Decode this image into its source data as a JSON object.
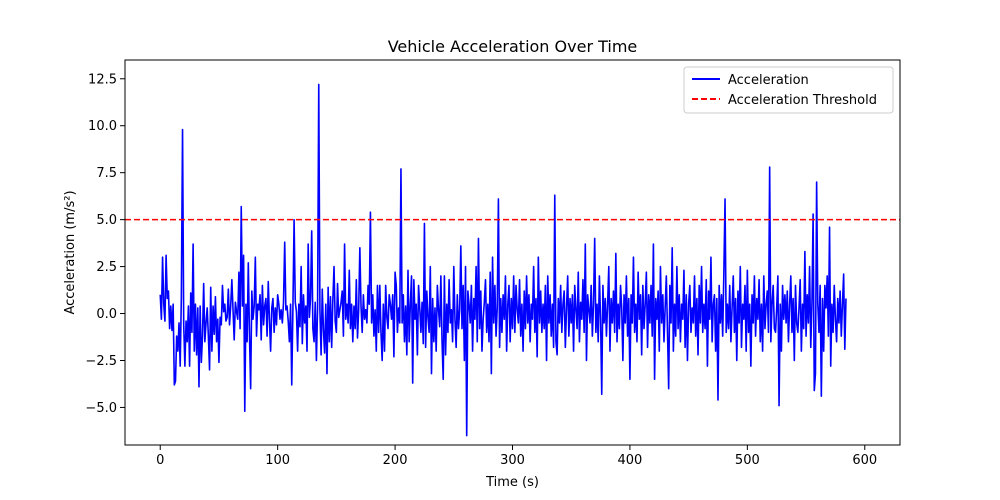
{
  "chart_data": {
    "type": "line",
    "title": "Vehicle Acceleration Over Time",
    "xlabel": "Time (s)",
    "ylabel": "Acceleration (m/s²)",
    "xlim": [
      -30,
      630
    ],
    "ylim": [
      -7,
      13.5
    ],
    "xticks": [
      0,
      100,
      200,
      300,
      400,
      500,
      600
    ],
    "xtick_labels": [
      "0",
      "100",
      "200",
      "300",
      "400",
      "500",
      "600"
    ],
    "yticks": [
      -5.0,
      -2.5,
      0.0,
      2.5,
      5.0,
      7.5,
      10.0,
      12.5
    ],
    "ytick_labels": [
      "−5.0",
      "−2.5",
      "0.0",
      "2.5",
      "5.0",
      "7.5",
      "10.0",
      "12.5"
    ],
    "grid": false,
    "legend_position": "top-right",
    "series": [
      {
        "name": "Acceleration",
        "color": "#0000ff",
        "x_start": 0,
        "x_step": 1,
        "values": [
          1.0,
          -0.3,
          3.0,
          0.5,
          -0.4,
          3.1,
          0.8,
          1.2,
          -0.8,
          0.4,
          -0.9,
          0.5,
          -3.8,
          -3.6,
          -1.2,
          -2.0,
          -0.5,
          -2.8,
          0.9,
          9.8,
          -0.6,
          -2.8,
          -0.4,
          -1.5,
          0.4,
          -2.8,
          1.1,
          -1.0,
          3.7,
          -2.0,
          0.5,
          -2.2,
          0.3,
          -3.9,
          0.4,
          -2.6,
          -1.2,
          1.6,
          -1.5,
          -0.5,
          0.3,
          -1.2,
          -3.0,
          1.4,
          -2.0,
          0.4,
          -1.1,
          0.9,
          -1.5,
          -0.3,
          -2.6,
          -0.2,
          -0.6,
          1.5,
          0.1,
          0.5,
          -0.4,
          -0.2,
          1.3,
          -0.6,
          0.4,
          1.8,
          0.2,
          -1.4,
          0.6,
          0.1,
          -0.3,
          2.2,
          -0.8,
          5.7,
          0.4,
          3.1,
          -5.2,
          0.5,
          -1.5,
          2.7,
          -1.1,
          -4.0,
          1.2,
          -0.3,
          0.4,
          3.0,
          -1.2,
          0.5,
          0.2,
          1.0,
          -1.4,
          1.5,
          -0.6,
          0.4,
          0.8,
          -1.2,
          1.7,
          -0.3,
          -2.0,
          0.3,
          0.8,
          -1.0,
          0.3,
          -0.6,
          1.0,
          0.5,
          -0.3,
          0.2,
          -0.5,
          0.6,
          3.8,
          0.2,
          0.4,
          -0.4,
          -1.5,
          0.5,
          -3.8,
          0.3,
          5.0,
          0.6,
          0.1,
          -2.0,
          0.5,
          -0.7,
          2.5,
          -1.6,
          1.0,
          -0.5,
          0.4,
          -2.0,
          3.7,
          -0.2,
          0.8,
          4.4,
          -0.8,
          -1.5,
          0.6,
          -2.5,
          0.3,
          12.2,
          0.2,
          -2.2,
          1.3,
          -0.9,
          -2.1,
          0.5,
          -3.2,
          1.4,
          -1.5,
          0.9,
          -1.8,
          0.7,
          2.5,
          -0.4,
          -1.0,
          1.6,
          -0.2,
          0.2,
          0.6,
          1.2,
          -1.2,
          3.7,
          -0.3,
          0.5,
          -0.5,
          2.3,
          -0.8,
          0.5,
          -1.5,
          0.4,
          -0.8,
          1.8,
          -1.3,
          0.2,
          3.5,
          0.4,
          -1.0,
          1.0,
          -0.3,
          0.2,
          -0.5,
          1.5,
          0.5,
          5.4,
          -0.5,
          1.0,
          -1.2,
          0.2,
          -2.0,
          1.5,
          -1.0,
          1.5,
          -1.0,
          -2.5,
          0.5,
          -2.0,
          1.5,
          -0.2,
          -0.8,
          1.0,
          0.5,
          -0.3,
          1.0,
          -2.3,
          2.2,
          1.5,
          -1.0,
          0.3,
          -0.5,
          7.7,
          -0.5,
          1.0,
          -1.5,
          0.4,
          -2.2,
          2.3,
          -1.5,
          0.5,
          2.0,
          -3.7,
          1.8,
          -0.3,
          0.5,
          -2.2,
          1.5,
          0.3,
          -1.0,
          0.6,
          -1.6,
          4.8,
          -1.8,
          1.2,
          -0.2,
          -1.0,
          2.5,
          -3.2,
          0.8,
          -1.5,
          0.3,
          -2.0,
          1.5,
          0.2,
          -0.7,
          2.0,
          -1.5,
          -3.5,
          2.0,
          -2.2,
          0.5,
          -1.0,
          1.8,
          -0.5,
          0.2,
          -1.5,
          2.5,
          -0.3,
          -1.8,
          1.0,
          -0.8,
          0.2,
          3.6,
          -0.8,
          1.5,
          -2.5,
          2.5,
          -6.5,
          1.2,
          0.5,
          -0.5,
          1.5,
          -2.0,
          0.8,
          -0.3,
          2.5,
          -1.5,
          4.0,
          -0.8,
          1.2,
          -2.0,
          -0.3,
          0.6,
          1.8,
          -1.0,
          0.5,
          -1.5,
          2.2,
          -3.2,
          3.0,
          -0.5,
          1.5,
          -1.2,
          0.3,
          6.1,
          -1.8,
          0.8,
          -1.0,
          1.0,
          -0.3,
          2.0,
          -2.0,
          0.5,
          1.5,
          -1.5,
          0.8,
          -0.8,
          2.0,
          -1.0,
          1.5,
          0.2,
          -0.5,
          1.8,
          -1.2,
          0.5,
          -2.0,
          1.2,
          -0.8,
          2.0,
          -0.5,
          1.0,
          -1.5,
          0.5,
          -0.3,
          2.5,
          -1.0,
          0.8,
          -2.3,
          3.0,
          -0.5,
          1.2,
          -1.0,
          0.5,
          -0.8,
          1.5,
          -2.5,
          2.0,
          -0.5,
          1.0,
          -1.2,
          0.5,
          -1.8,
          6.3,
          -1.5,
          -2.2,
          0.8,
          -0.5,
          1.5,
          -1.0,
          0.5,
          1.2,
          -1.8,
          0.3,
          2.0,
          -1.2,
          0.8,
          -0.5,
          1.0,
          -2.0,
          1.5,
          0.2,
          -0.8,
          2.2,
          -1.5,
          0.6,
          -0.3,
          1.8,
          -1.0,
          3.7,
          -2.5,
          1.0,
          0.2,
          -0.5,
          1.5,
          -1.2,
          0.5,
          4.0,
          -1.0,
          0.5,
          -1.5,
          2.0,
          -0.3,
          -4.3,
          1.5,
          -0.5,
          0.8,
          -1.2,
          0.5,
          2.5,
          -2.0,
          0.8,
          -0.5,
          1.2,
          -1.0,
          3.2,
          -1.5,
          0.5,
          -0.8,
          1.5,
          0.3,
          -2.5,
          1.0,
          -0.5,
          2.0,
          -1.2,
          0.8,
          -3.5,
          1.0,
          -0.5,
          3.0,
          -1.0,
          0.5,
          -1.5,
          2.2,
          -0.3,
          1.0,
          -2.2,
          1.5,
          -0.8,
          0.5,
          2.2,
          -1.8,
          1.0,
          -0.5,
          1.5,
          -1.2,
          3.7,
          -3.5,
          0.8,
          -0.3,
          1.2,
          -2.0,
          2.5,
          -0.5,
          1.0,
          -1.5,
          0.3,
          2.0,
          -1.0,
          -4.0,
          1.5,
          -0.5,
          3.5,
          -2.0,
          0.5,
          -1.2,
          2.5,
          -0.8,
          1.0,
          -1.5,
          0.5,
          -0.3,
          2.3,
          -1.8,
          1.0,
          -2.5,
          0.5,
          1.5,
          -1.0,
          0.3,
          -0.5,
          2.0,
          -1.2,
          0.8,
          -2.2,
          1.5,
          -0.5,
          2.5,
          -1.0,
          0.5,
          -0.8,
          1.8,
          -2.8,
          1.2,
          -0.3,
          3.0,
          -1.5,
          0.5,
          1.0,
          -2.0,
          0.8,
          -4.6,
          1.5,
          -0.5,
          1.0,
          -1.2,
          2.2,
          6.1,
          -1.0,
          0.5,
          -0.8,
          1.5,
          -1.5,
          0.3,
          2.0,
          -1.0,
          0.8,
          -2.5,
          1.2,
          -0.5,
          2.5,
          -1.8,
          0.5,
          -0.3,
          1.5,
          -2.0,
          2.3,
          -1.0,
          0.5,
          -2.8,
          1.0,
          -0.5,
          2.0,
          -1.2,
          0.8,
          -0.3,
          1.8,
          -1.5,
          0.5,
          -2.0,
          2.0,
          -0.8,
          0.5,
          1.2,
          -1.0,
          7.8,
          -1.5,
          0.5,
          1.5,
          -0.8,
          -1.0,
          0.3,
          2.0,
          -4.9,
          0.5,
          -2.0,
          1.5,
          -0.3,
          1.0,
          -0.5,
          1.2,
          -1.5,
          0.5,
          2.0,
          -1.0,
          0.8,
          -2.5,
          1.5,
          -0.5,
          -1.0,
          0.3,
          1.8,
          -2.0,
          0.5,
          -0.8,
          3.3,
          -1.2,
          1.0,
          -0.5,
          2.5,
          -1.8,
          0.5,
          5.3,
          -4.1,
          -3.2,
          7.0,
          0.5,
          -1.0,
          1.5,
          -4.4,
          0.8,
          -2.0,
          1.5,
          0.3,
          2.0,
          -1.2,
          4.6,
          -2.8,
          0.5,
          -1.0,
          1.5,
          -0.3,
          -1.5,
          0.8,
          -0.5,
          1.2,
          -1.2,
          0.5,
          2.1,
          -1.9,
          0.8
        ]
      },
      {
        "name": "Acceleration Threshold",
        "color": "#ff0000",
        "style": "dashed",
        "y": 5.0
      }
    ]
  }
}
